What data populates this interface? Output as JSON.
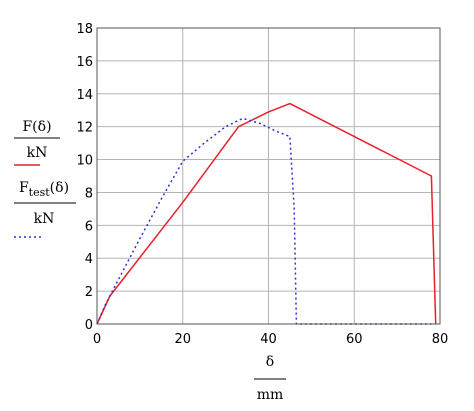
{
  "chart_data": {
    "type": "line",
    "title": "",
    "xlim": [
      0,
      80
    ],
    "ylim": [
      0,
      18
    ],
    "x_ticks": [
      0,
      20,
      40,
      60,
      80
    ],
    "y_ticks": [
      0,
      2,
      4,
      6,
      8,
      10,
      12,
      14,
      16,
      18
    ],
    "x_tick_labels": [
      "0",
      "20",
      "40",
      "60",
      "80"
    ],
    "y_tick_labels": [
      "0",
      "2",
      "4",
      "6",
      "8",
      "10",
      "12",
      "14",
      "16",
      "18"
    ],
    "grid": true,
    "xlabel": {
      "numerator": "δ",
      "denominator": "mm"
    },
    "ylabel": {
      "expr1": {
        "func": "F",
        "arg": "(δ)",
        "denominator": "kN"
      },
      "expr2": {
        "func": "F",
        "subscript": "test",
        "arg": "(δ)",
        "denominator": "kN"
      }
    },
    "series": [
      {
        "color": "#e8202a",
        "style": "solid",
        "x": [
          0,
          3,
          20,
          33,
          40,
          45,
          78,
          79
        ],
        "y": [
          0,
          1.7,
          7.4,
          12.0,
          12.9,
          13.4,
          9.0,
          0
        ]
      },
      {
        "color": "#2832d8",
        "style": "dotted",
        "x": [
          0,
          2,
          5,
          10,
          15,
          20,
          25,
          30,
          34,
          38,
          42,
          45,
          46,
          46.5,
          78
        ],
        "y": [
          0,
          1.2,
          2.7,
          5.2,
          7.6,
          9.9,
          11.0,
          12.0,
          12.5,
          12.2,
          11.7,
          11.4,
          7.0,
          0,
          0
        ]
      }
    ]
  }
}
